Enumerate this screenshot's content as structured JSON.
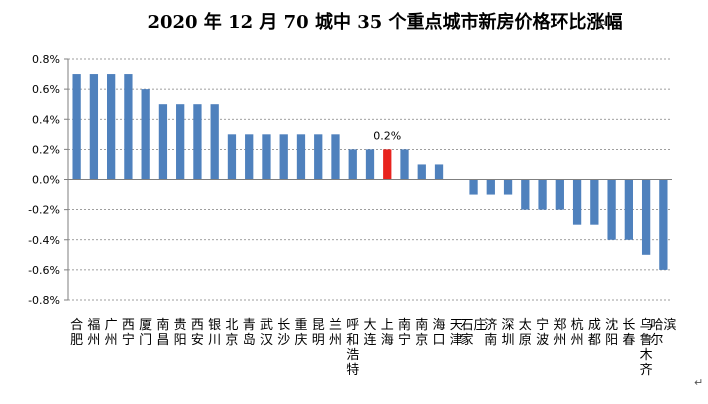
{
  "chart_data": {
    "type": "bar",
    "title": "2020 年 12 月 70 城中 35 个重点城市新房价格环比涨幅",
    "title_mark": "↵",
    "corner_mark": "↵",
    "xlabel": "",
    "ylabel": "",
    "ylim": [
      -0.8,
      0.8
    ],
    "yticks": [
      "0.8%",
      "0.6%",
      "0.4%",
      "0.2%",
      "0.0%",
      "-0.2%",
      "-0.4%",
      "-0.6%",
      "-0.8%"
    ],
    "grid": true,
    "legend": "none",
    "categories": [
      "合肥",
      "福州",
      "广州",
      "西宁",
      "厦门",
      "南昌",
      "贵阳",
      "西安",
      "银川",
      "北京",
      "青岛",
      "武汉",
      "长沙",
      "重庆",
      "昆明",
      "兰州",
      "呼和浩特",
      "大连",
      "上海",
      "南宁",
      "南京",
      "海口",
      "天津",
      "石家庄",
      "济南",
      "深圳",
      "太原",
      "宁波",
      "郑州",
      "杭州",
      "成都",
      "沈阳",
      "长春",
      "乌鲁木齐",
      "哈尔滨"
    ],
    "values": [
      0.7,
      0.7,
      0.7,
      0.7,
      0.6,
      0.5,
      0.5,
      0.5,
      0.5,
      0.3,
      0.3,
      0.3,
      0.3,
      0.3,
      0.3,
      0.3,
      0.2,
      0.2,
      0.2,
      0.2,
      0.1,
      0.1,
      0.0,
      -0.1,
      -0.1,
      -0.1,
      -0.2,
      -0.2,
      -0.2,
      -0.3,
      -0.3,
      -0.4,
      -0.4,
      -0.5,
      -0.6
    ],
    "highlight_index": 18,
    "highlight_label": "0.2%",
    "colors": {
      "bar": "#4f81bd",
      "highlight": "#e8231e",
      "grid": "#7f7f7f",
      "axis": "#7f7f7f"
    }
  }
}
